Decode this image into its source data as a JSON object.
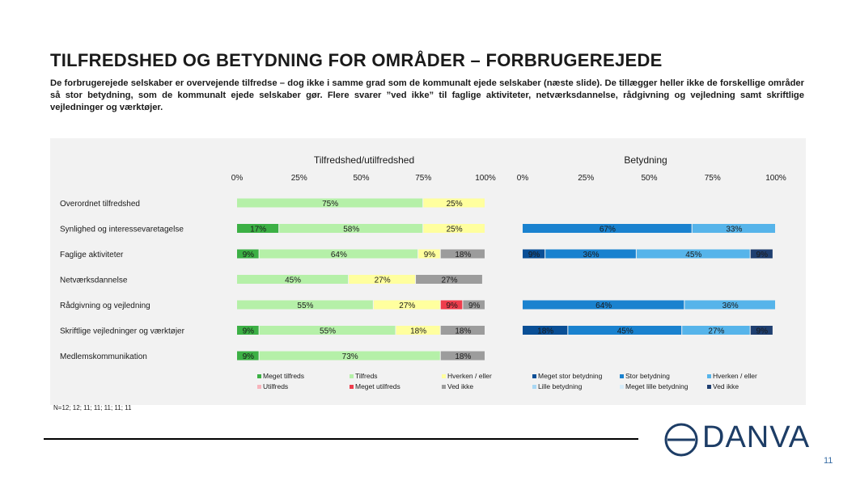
{
  "page": {
    "title": "TILFREDSHED OG BETYDNING FOR OMRÅDER – FORBRUGEREJEDE",
    "intro": "De forbrugerejede selskaber er overvejende tilfredse – dog ikke i samme grad som de kommunalt ejede selskaber (næste slide). De tillægger heller ikke de forskellige områder så stor betydning, som de kommunalt ejede selskaber gør. Flere svarer ”ved ikke” til faglige aktiviteter, netværksdannelse, rådgivning og vejledning samt skriftlige vejledninger og værktøjer.",
    "n_label": "N=12; 12; 11; 11; 11; 11; 11",
    "logo_text": "DANVA",
    "page_number": "11"
  },
  "chart_data": [
    {
      "type": "bar",
      "stacked": true,
      "orientation": "horizontal",
      "title": "Tilfredshed/utilfredshed",
      "axis_ticks": [
        "0%",
        "25%",
        "50%",
        "75%",
        "100%"
      ],
      "xlim": [
        0,
        100
      ],
      "categories": [
        "Overordnet tilfredshed",
        "Synlighed og interessevaretagelse",
        "Faglige aktiviteter",
        "Netværksdannelse",
        "Rådgivning og vejledning",
        "Skriftlige vejledninger og værktøjer",
        "Medlemskommunikation"
      ],
      "series": [
        {
          "name": "Meget tilfreds",
          "color": "#3cb045",
          "values": [
            0,
            17,
            9,
            0,
            0,
            9,
            9
          ]
        },
        {
          "name": "Tilfreds",
          "color": "#b5f0a8",
          "values": [
            75,
            58,
            64,
            45,
            55,
            55,
            73
          ]
        },
        {
          "name": "Hverken / eller",
          "color": "#ffff9e",
          "values": [
            25,
            25,
            9,
            27,
            27,
            18,
            0
          ]
        },
        {
          "name": "Utilfreds",
          "color": "#f7b4bc",
          "values": [
            0,
            0,
            0,
            0,
            0,
            0,
            0
          ]
        },
        {
          "name": "Meget utilfreds",
          "color": "#ee3d4c",
          "values": [
            0,
            0,
            0,
            0,
            9,
            0,
            0
          ]
        },
        {
          "name": "Ved ikke",
          "color": "#9c9c9c",
          "values": [
            0,
            0,
            18,
            27,
            9,
            18,
            18
          ]
        }
      ],
      "legend_rows": [
        [
          "Meget tilfreds",
          "Tilfreds",
          "Hverken / eller"
        ],
        [
          "Utilfreds",
          "Meget utilfreds",
          "Ved ikke"
        ]
      ]
    },
    {
      "type": "bar",
      "stacked": true,
      "orientation": "horizontal",
      "title": "Betydning",
      "axis_ticks": [
        "0%",
        "25%",
        "50%",
        "75%",
        "100%"
      ],
      "xlim": [
        0,
        100
      ],
      "categories": [
        "Overordnet tilfredshed",
        "Synlighed og interessevaretagelse",
        "Faglige aktiviteter",
        "Netværksdannelse",
        "Rådgivning og vejledning",
        "Skriftlige vejledninger og værktøjer",
        "Medlemskommunikation"
      ],
      "present_rows": [
        false,
        true,
        true,
        false,
        true,
        true,
        false
      ],
      "series": [
        {
          "name": "Meget stor betydning",
          "color": "#0a4f96",
          "values": [
            0,
            0,
            9,
            0,
            0,
            18,
            0
          ]
        },
        {
          "name": "Stor betydning",
          "color": "#1a82cf",
          "values": [
            0,
            67,
            36,
            0,
            64,
            45,
            0
          ]
        },
        {
          "name": "Hverken / eller",
          "color": "#56b4ea",
          "values": [
            0,
            33,
            45,
            0,
            36,
            27,
            0
          ]
        },
        {
          "name": "Lille betydning",
          "color": "#a9d8f4",
          "values": [
            0,
            0,
            0,
            0,
            0,
            0,
            0
          ]
        },
        {
          "name": "Meget lille betydning",
          "color": "#d6ecfa",
          "values": [
            0,
            0,
            0,
            0,
            0,
            0,
            0
          ]
        },
        {
          "name": "Ved ikke",
          "color": "#1f3f70",
          "values": [
            0,
            0,
            9,
            0,
            0,
            9,
            0
          ]
        }
      ],
      "legend_rows": [
        [
          "Meget stor betydning",
          "Stor betydning",
          "Hverken / eller"
        ],
        [
          "Lille betydning",
          "Meget lille betydning",
          "Ved ikke"
        ]
      ]
    }
  ]
}
